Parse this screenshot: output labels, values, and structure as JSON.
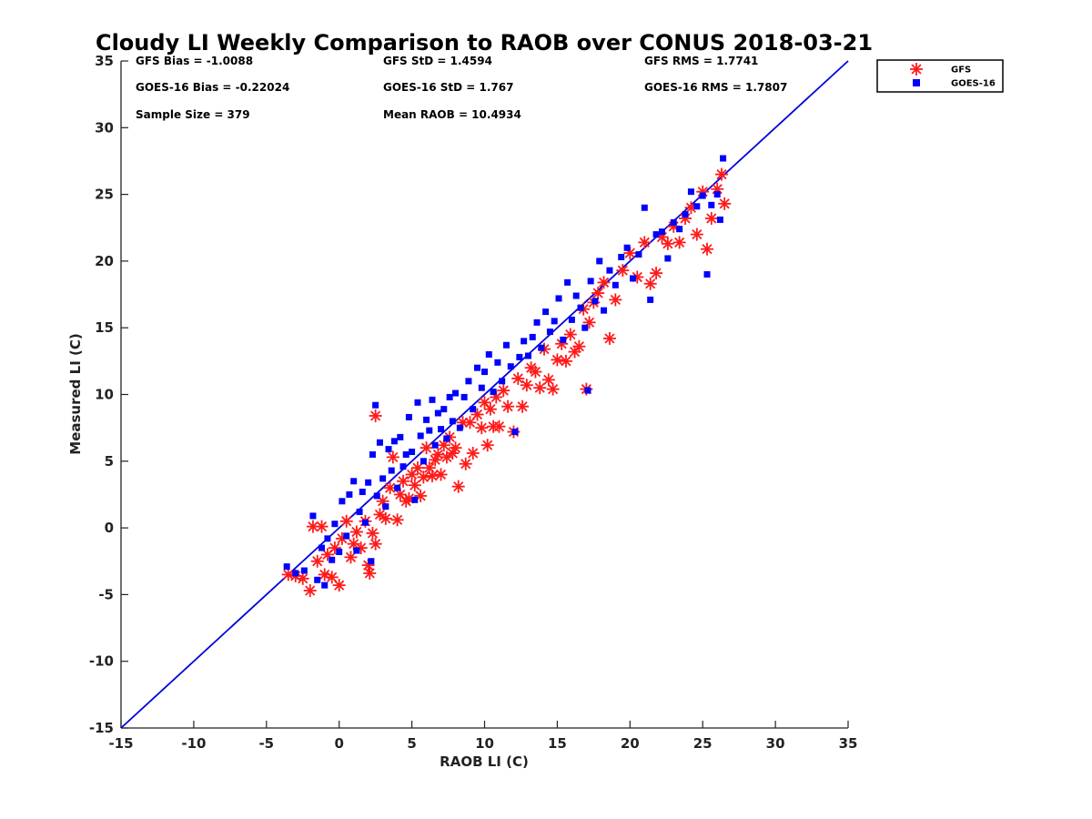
{
  "chart_data": {
    "type": "scatter",
    "title": "Cloudy LI Weekly Comparison to RAOB over CONUS 2018-03-21",
    "xlabel": "RAOB LI (C)",
    "ylabel": "Measured LI (C)",
    "xlim": [
      -15,
      35
    ],
    "ylim": [
      -15,
      35
    ],
    "x_ticks": [
      "-15",
      "-10",
      "-5",
      "0",
      "5",
      "10",
      "15",
      "20",
      "25",
      "30",
      "35"
    ],
    "y_ticks": [
      "-15",
      "-10",
      "-5",
      "0",
      "5",
      "10",
      "15",
      "20",
      "25",
      "30",
      "35"
    ],
    "grid": false,
    "legend_position": "top-right",
    "stats": [
      [
        "GFS Bias = -1.0088",
        "GFS StD = 1.4594",
        "GFS RMS = 1.7741"
      ],
      [
        "GOES-16 Bias = -0.22024",
        "GOES-16 StD = 1.767",
        "GOES-16 RMS = 1.7807"
      ],
      [
        "Sample Size = 379",
        "Mean RAOB = 10.4934",
        ""
      ]
    ],
    "reference_line": {
      "x": [
        -15,
        35
      ],
      "y": [
        -15,
        35
      ],
      "color": "#0000dd"
    },
    "series": [
      {
        "name": "GFS",
        "marker": "asterisk",
        "color": "#ff1a1a",
        "points": [
          [
            -3.5,
            -3.5
          ],
          [
            -3,
            -3.6
          ],
          [
            -2.5,
            -3.8
          ],
          [
            -2,
            -4.7
          ],
          [
            -1.8,
            0.1
          ],
          [
            -1.5,
            -2.5
          ],
          [
            -1.2,
            0.1
          ],
          [
            -1,
            -3.5
          ],
          [
            -0.8,
            -2
          ],
          [
            -0.5,
            -3.7
          ],
          [
            -0.3,
            -1.5
          ],
          [
            0,
            -4.3
          ],
          [
            0.2,
            -0.8
          ],
          [
            0.5,
            0.5
          ],
          [
            0.8,
            -2.2
          ],
          [
            1,
            -1.2
          ],
          [
            1.2,
            -0.3
          ],
          [
            1.5,
            -1.5
          ],
          [
            1.8,
            0.5
          ],
          [
            2,
            -2.8
          ],
          [
            2.1,
            -3.4
          ],
          [
            2.3,
            -0.4
          ],
          [
            2.5,
            -1.2
          ],
          [
            2.5,
            8.4
          ],
          [
            2.8,
            1
          ],
          [
            3,
            2
          ],
          [
            3.2,
            0.7
          ],
          [
            3.5,
            3
          ],
          [
            3.7,
            5.3
          ],
          [
            4,
            0.6
          ],
          [
            4.2,
            2.5
          ],
          [
            4.4,
            3.5
          ],
          [
            4.6,
            2
          ],
          [
            4.8,
            2.2
          ],
          [
            5,
            4
          ],
          [
            5.2,
            3.2
          ],
          [
            5.4,
            4.5
          ],
          [
            5.6,
            2.4
          ],
          [
            5.8,
            3.8
          ],
          [
            6,
            6
          ],
          [
            6.2,
            4.5
          ],
          [
            6.4,
            3.9
          ],
          [
            6.6,
            5.1
          ],
          [
            6.8,
            5.5
          ],
          [
            7,
            4
          ],
          [
            7.2,
            6.2
          ],
          [
            7.4,
            5.3
          ],
          [
            7.6,
            6.8
          ],
          [
            7.8,
            5.6
          ],
          [
            8,
            6
          ],
          [
            8.2,
            3.1
          ],
          [
            8.5,
            7.9
          ],
          [
            8.7,
            4.8
          ],
          [
            9,
            7.9
          ],
          [
            9.2,
            5.6
          ],
          [
            9.5,
            8.5
          ],
          [
            9.8,
            7.5
          ],
          [
            10,
            9.4
          ],
          [
            10.2,
            6.2
          ],
          [
            10.4,
            8.9
          ],
          [
            10.6,
            7.6
          ],
          [
            10.8,
            9.8
          ],
          [
            11,
            7.6
          ],
          [
            11.3,
            10.3
          ],
          [
            11.6,
            9.1
          ],
          [
            12,
            7.2
          ],
          [
            12.3,
            11.2
          ],
          [
            12.6,
            9.1
          ],
          [
            12.9,
            10.7
          ],
          [
            13.2,
            12
          ],
          [
            13.5,
            11.7
          ],
          [
            13.8,
            10.5
          ],
          [
            14.1,
            13.4
          ],
          [
            14.4,
            11.1
          ],
          [
            14.7,
            10.4
          ],
          [
            15,
            12.6
          ],
          [
            15.3,
            13.8
          ],
          [
            15.6,
            12.5
          ],
          [
            15.9,
            14.5
          ],
          [
            16.2,
            13.2
          ],
          [
            16.5,
            13.6
          ],
          [
            16.8,
            16.4
          ],
          [
            17,
            10.4
          ],
          [
            17.2,
            15.4
          ],
          [
            17.5,
            16.9
          ],
          [
            17.8,
            17.6
          ],
          [
            18.2,
            18.4
          ],
          [
            18.6,
            14.2
          ],
          [
            19,
            17.1
          ],
          [
            19.5,
            19.3
          ],
          [
            20,
            20.6
          ],
          [
            20.5,
            18.8
          ],
          [
            21,
            21.4
          ],
          [
            21.4,
            18.3
          ],
          [
            21.8,
            19.1
          ],
          [
            22.2,
            21.8
          ],
          [
            22.6,
            21.3
          ],
          [
            23,
            22.6
          ],
          [
            23.4,
            21.4
          ],
          [
            23.8,
            23.2
          ],
          [
            24.2,
            24
          ],
          [
            24.6,
            22
          ],
          [
            25,
            25.2
          ],
          [
            25.3,
            20.9
          ],
          [
            25.6,
            23.2
          ],
          [
            26,
            25.4
          ],
          [
            26.3,
            26.5
          ],
          [
            26.5,
            24.3
          ]
        ]
      },
      {
        "name": "GOES-16",
        "marker": "square",
        "color": "#0000ff",
        "points": [
          [
            -3.6,
            -2.9
          ],
          [
            -3,
            -3.4
          ],
          [
            -2.4,
            -3.2
          ],
          [
            -1.8,
            0.9
          ],
          [
            -1.5,
            -3.9
          ],
          [
            -1.2,
            -1.5
          ],
          [
            -1,
            -4.3
          ],
          [
            -0.8,
            -0.8
          ],
          [
            -0.5,
            -2.4
          ],
          [
            -0.3,
            0.3
          ],
          [
            0,
            -1.8
          ],
          [
            0.2,
            2
          ],
          [
            0.5,
            -0.6
          ],
          [
            0.7,
            2.5
          ],
          [
            1,
            3.5
          ],
          [
            1.2,
            -1.7
          ],
          [
            1.4,
            1.2
          ],
          [
            1.6,
            2.7
          ],
          [
            1.8,
            0.4
          ],
          [
            2,
            3.4
          ],
          [
            2.2,
            -2.5
          ],
          [
            2.3,
            5.5
          ],
          [
            2.5,
            9.2
          ],
          [
            2.6,
            2.4
          ],
          [
            2.8,
            6.4
          ],
          [
            3,
            3.7
          ],
          [
            3.2,
            1.6
          ],
          [
            3.4,
            5.9
          ],
          [
            3.6,
            4.3
          ],
          [
            3.8,
            6.5
          ],
          [
            4,
            3
          ],
          [
            4.2,
            6.8
          ],
          [
            4.4,
            4.6
          ],
          [
            4.6,
            5.5
          ],
          [
            4.8,
            8.3
          ],
          [
            5,
            5.7
          ],
          [
            5.2,
            2.1
          ],
          [
            5.4,
            9.4
          ],
          [
            5.6,
            6.9
          ],
          [
            5.8,
            5
          ],
          [
            6,
            8.1
          ],
          [
            6.2,
            7.3
          ],
          [
            6.4,
            9.6
          ],
          [
            6.6,
            6.2
          ],
          [
            6.8,
            8.6
          ],
          [
            7,
            7.4
          ],
          [
            7.2,
            8.9
          ],
          [
            7.4,
            6.7
          ],
          [
            7.6,
            9.8
          ],
          [
            7.8,
            8
          ],
          [
            8,
            10.1
          ],
          [
            8.3,
            7.5
          ],
          [
            8.6,
            9.8
          ],
          [
            8.9,
            11
          ],
          [
            9.2,
            8.9
          ],
          [
            9.5,
            12
          ],
          [
            9.8,
            10.5
          ],
          [
            10,
            11.7
          ],
          [
            10.3,
            13
          ],
          [
            10.6,
            10.2
          ],
          [
            10.9,
            12.4
          ],
          [
            11.2,
            11
          ],
          [
            11.5,
            13.7
          ],
          [
            11.8,
            12.1
          ],
          [
            12.1,
            7.2
          ],
          [
            12.4,
            12.8
          ],
          [
            12.7,
            14
          ],
          [
            13,
            12.9
          ],
          [
            13.3,
            14.3
          ],
          [
            13.6,
            15.4
          ],
          [
            13.9,
            13.5
          ],
          [
            14.2,
            16.2
          ],
          [
            14.5,
            14.7
          ],
          [
            14.8,
            15.5
          ],
          [
            15.1,
            17.2
          ],
          [
            15.4,
            14.1
          ],
          [
            15.7,
            18.4
          ],
          [
            16,
            15.6
          ],
          [
            16.3,
            17.4
          ],
          [
            16.6,
            16.5
          ],
          [
            16.9,
            15
          ],
          [
            17.1,
            10.3
          ],
          [
            17.3,
            18.5
          ],
          [
            17.6,
            17
          ],
          [
            17.9,
            20
          ],
          [
            18.2,
            16.3
          ],
          [
            18.6,
            19.3
          ],
          [
            19,
            18.2
          ],
          [
            19.4,
            20.3
          ],
          [
            19.8,
            21
          ],
          [
            20.2,
            18.7
          ],
          [
            20.6,
            20.5
          ],
          [
            21,
            24
          ],
          [
            21.4,
            17.1
          ],
          [
            21.8,
            22
          ],
          [
            22.2,
            22.2
          ],
          [
            22.6,
            20.2
          ],
          [
            23,
            22.9
          ],
          [
            23.4,
            22.4
          ],
          [
            23.8,
            23.5
          ],
          [
            24.2,
            25.2
          ],
          [
            24.6,
            24.1
          ],
          [
            25,
            24.9
          ],
          [
            25.3,
            19
          ],
          [
            25.6,
            24.2
          ],
          [
            26,
            25
          ],
          [
            26.2,
            23.1
          ],
          [
            26.4,
            27.7
          ]
        ]
      }
    ]
  }
}
